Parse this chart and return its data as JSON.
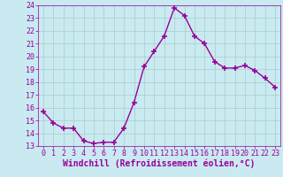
{
  "x": [
    0,
    1,
    2,
    3,
    4,
    5,
    6,
    7,
    8,
    9,
    10,
    11,
    12,
    13,
    14,
    15,
    16,
    17,
    18,
    19,
    20,
    21,
    22,
    23
  ],
  "y": [
    15.7,
    14.8,
    14.4,
    14.4,
    13.4,
    13.2,
    13.3,
    13.3,
    14.4,
    16.4,
    19.2,
    20.4,
    21.6,
    23.8,
    23.2,
    21.6,
    21.0,
    19.6,
    19.1,
    19.1,
    19.3,
    18.9,
    18.3,
    17.6
  ],
  "line_color": "#990099",
  "marker": "+",
  "marker_size": 4,
  "marker_linewidth": 1.2,
  "bg_color": "#c8eaf0",
  "grid_color": "#aacccc",
  "xlabel": "Windchill (Refroidissement éolien,°C)",
  "xlabel_color": "#990099",
  "tick_color": "#990099",
  "ylim": [
    13,
    24
  ],
  "xlim_min": -0.5,
  "xlim_max": 23.5,
  "yticks": [
    13,
    14,
    15,
    16,
    17,
    18,
    19,
    20,
    21,
    22,
    23,
    24
  ],
  "xticks": [
    0,
    1,
    2,
    3,
    4,
    5,
    6,
    7,
    8,
    9,
    10,
    11,
    12,
    13,
    14,
    15,
    16,
    17,
    18,
    19,
    20,
    21,
    22,
    23
  ],
  "tick_fontsize": 6,
  "xlabel_fontsize": 7
}
